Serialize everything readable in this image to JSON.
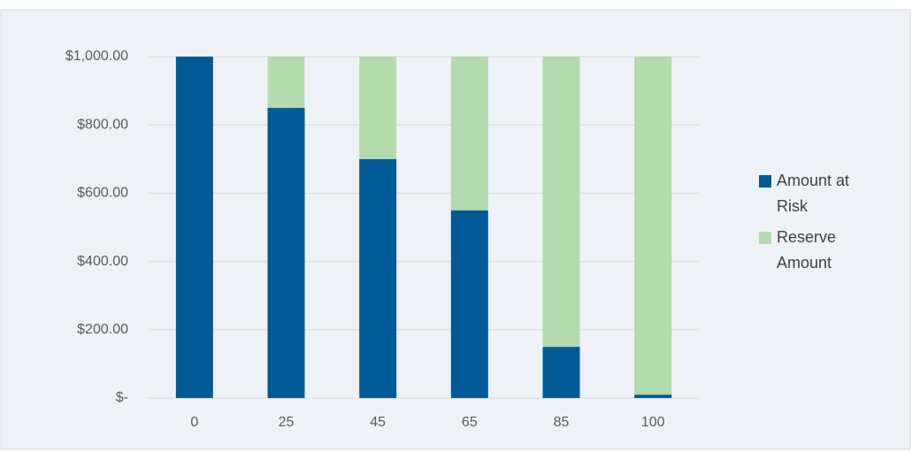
{
  "chart_data": {
    "type": "stacked_bar",
    "categories": [
      "0",
      "25",
      "45",
      "65",
      "85",
      "100"
    ],
    "series": [
      {
        "name": "Amount at Risk",
        "color": "#005a96",
        "values": [
          1000,
          850,
          700,
          550,
          150,
          10
        ]
      },
      {
        "name": "Reserve Amount",
        "color": "#b4dbad",
        "values": [
          0,
          150,
          300,
          450,
          850,
          990
        ]
      }
    ],
    "ylim": [
      0,
      1000
    ],
    "yticks": [
      {
        "value": 0,
        "label": "$-"
      },
      {
        "value": 200,
        "label": "$200.00"
      },
      {
        "value": 400,
        "label": "$400.00"
      },
      {
        "value": 600,
        "label": "$600.00"
      },
      {
        "value": 800,
        "label": "$800.00"
      },
      {
        "value": 1000,
        "label": "$1,000.00"
      }
    ],
    "grid": true,
    "legend": "right"
  }
}
